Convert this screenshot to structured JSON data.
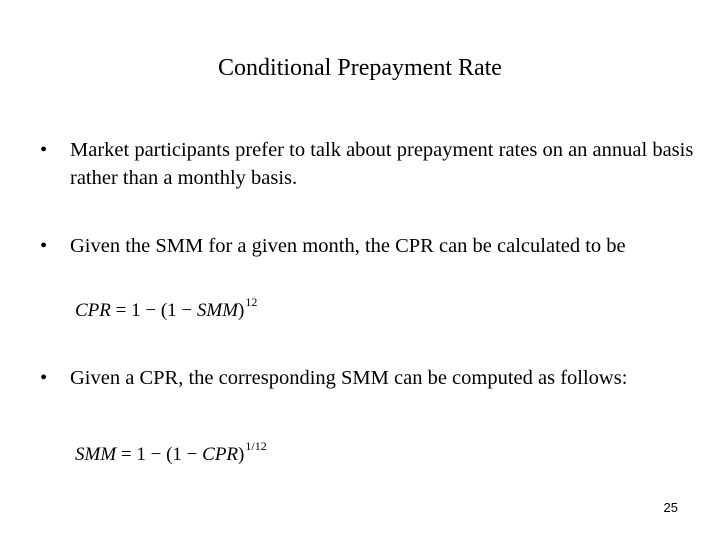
{
  "slide": {
    "title": "Conditional Prepayment Rate",
    "bullets": [
      {
        "text": "Market participants prefer to talk about prepayment rates on an annual basis rather than a monthly basis."
      },
      {
        "text": "Given the SMM for a given month, the CPR can be calculated to be"
      },
      {
        "text": "Given a CPR, the corresponding SMM can be computed as follows:"
      }
    ],
    "formula1": {
      "lhs": "CPR",
      "mid": " = 1 − (1 − ",
      "var": "SMM",
      "close": ")",
      "exp": "12"
    },
    "formula2": {
      "lhs": "SMM",
      "mid": " = 1 − (1 − ",
      "var": "CPR",
      "close": ")",
      "exp": "1/12"
    },
    "page_number": "25",
    "bullet_symbol": "•"
  }
}
